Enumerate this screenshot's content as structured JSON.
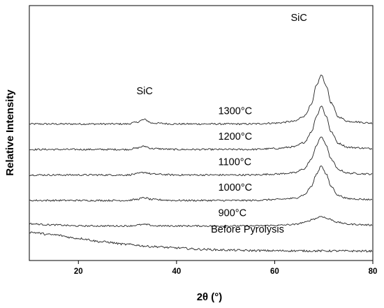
{
  "chart_data": {
    "type": "line",
    "title": "",
    "xlabel": "2θ (°)",
    "ylabel": "Relative Intensity",
    "xlim": [
      10,
      80
    ],
    "x_ticks": [
      20,
      40,
      60,
      80
    ],
    "y_ticks_shown": false,
    "grid": false,
    "legend": "none",
    "peak_labels": [
      {
        "text": "SiC",
        "x": 33.5
      },
      {
        "text": "SiC",
        "x": 69.5
      }
    ],
    "series": [
      {
        "name": "1300°C",
        "offset": 5,
        "noise": 0.05,
        "points": [
          [
            10,
            0
          ],
          [
            30,
            0
          ],
          [
            31.5,
            0.08
          ],
          [
            33.5,
            0.25
          ],
          [
            35,
            0.05
          ],
          [
            40,
            0
          ],
          [
            55,
            0
          ],
          [
            60,
            0.05
          ],
          [
            64,
            0.15
          ],
          [
            66,
            0.45
          ],
          [
            67.5,
            1.1
          ],
          [
            68.5,
            2.2
          ],
          [
            69.5,
            2.8
          ],
          [
            70.5,
            2.2
          ],
          [
            71.5,
            1.2
          ],
          [
            73,
            0.4
          ],
          [
            75,
            0.15
          ],
          [
            80,
            0.05
          ]
        ]
      },
      {
        "name": "1200°C",
        "offset": 4,
        "noise": 0.05,
        "points": [
          [
            10,
            0
          ],
          [
            30,
            0
          ],
          [
            31.5,
            0.06
          ],
          [
            33.5,
            0.18
          ],
          [
            35,
            0.05
          ],
          [
            40,
            0
          ],
          [
            55,
            0
          ],
          [
            60,
            0.05
          ],
          [
            64,
            0.15
          ],
          [
            66,
            0.4
          ],
          [
            67.5,
            1.0
          ],
          [
            68.5,
            1.9
          ],
          [
            69.5,
            2.5
          ],
          [
            70.5,
            1.9
          ],
          [
            71.5,
            1.0
          ],
          [
            73,
            0.35
          ],
          [
            75,
            0.12
          ],
          [
            80,
            0.05
          ]
        ]
      },
      {
        "name": "1100°C",
        "offset": 3,
        "noise": 0.05,
        "points": [
          [
            10,
            0
          ],
          [
            30,
            0
          ],
          [
            31.5,
            0.05
          ],
          [
            33.5,
            0.15
          ],
          [
            35,
            0.05
          ],
          [
            40,
            0
          ],
          [
            55,
            0
          ],
          [
            60,
            0.05
          ],
          [
            64,
            0.12
          ],
          [
            66,
            0.35
          ],
          [
            67.5,
            0.9
          ],
          [
            68.5,
            1.7
          ],
          [
            69.5,
            2.2
          ],
          [
            70.5,
            1.7
          ],
          [
            71.5,
            0.9
          ],
          [
            73,
            0.3
          ],
          [
            75,
            0.1
          ],
          [
            80,
            0.05
          ]
        ]
      },
      {
        "name": "1000°C",
        "offset": 2,
        "noise": 0.05,
        "points": [
          [
            10,
            0
          ],
          [
            30,
            0
          ],
          [
            31.5,
            0.05
          ],
          [
            33.5,
            0.15
          ],
          [
            35,
            0.05
          ],
          [
            40,
            0
          ],
          [
            55,
            0
          ],
          [
            60,
            0.05
          ],
          [
            64,
            0.12
          ],
          [
            66,
            0.32
          ],
          [
            67.5,
            0.8
          ],
          [
            68.5,
            1.5
          ],
          [
            69.5,
            2.0
          ],
          [
            70.5,
            1.5
          ],
          [
            71.5,
            0.8
          ],
          [
            73,
            0.28
          ],
          [
            75,
            0.1
          ],
          [
            80,
            0.05
          ]
        ]
      },
      {
        "name": "900°C",
        "offset": 1,
        "noise": 0.045,
        "points": [
          [
            10,
            0.12
          ],
          [
            15,
            0.06
          ],
          [
            20,
            0
          ],
          [
            30,
            0
          ],
          [
            33.5,
            0.08
          ],
          [
            36,
            0
          ],
          [
            55,
            0
          ],
          [
            60,
            0.03
          ],
          [
            64,
            0.08
          ],
          [
            66,
            0.2
          ],
          [
            68,
            0.4
          ],
          [
            69.5,
            0.55
          ],
          [
            71,
            0.4
          ],
          [
            73,
            0.2
          ],
          [
            75,
            0.1
          ],
          [
            80,
            0.05
          ]
        ]
      },
      {
        "name": "Before Pyrolysis",
        "offset": 0,
        "noise": 0.06,
        "points": [
          [
            10,
            1.1
          ],
          [
            15,
            0.95
          ],
          [
            20,
            0.75
          ],
          [
            25,
            0.55
          ],
          [
            30,
            0.4
          ],
          [
            35,
            0.28
          ],
          [
            40,
            0.2
          ],
          [
            45,
            0.12
          ],
          [
            50,
            0.08
          ],
          [
            55,
            0.05
          ],
          [
            60,
            0.04
          ],
          [
            70,
            0.03
          ],
          [
            80,
            0.02
          ]
        ]
      }
    ]
  }
}
